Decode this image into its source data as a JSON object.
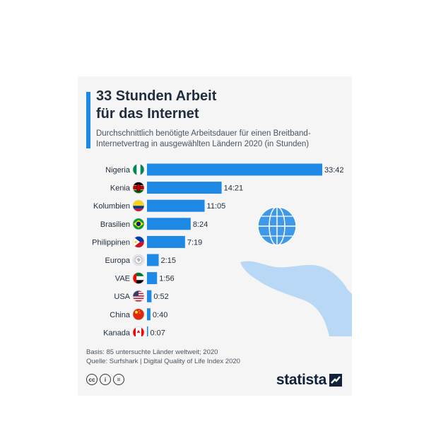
{
  "header": {
    "title_line1": "33 Stunden Arbeit",
    "title_line2": "für das Internet",
    "subtitle_line1": "Durchschnittlich benötigte Arbeitsdauer für einen Breitband-",
    "subtitle_line2": "Internetvertrag in ausgewählten Ländern 2020 (in Stunden)"
  },
  "chart_data": {
    "type": "bar",
    "orientation": "horizontal",
    "categories": [
      "Nigeria",
      "Kenia",
      "Kolumbien",
      "Brasilien",
      "Philippinen",
      "Europa",
      "VAE",
      "USA",
      "China",
      "Kanada"
    ],
    "labels": [
      "33:42",
      "14:21",
      "11:05",
      "8:24",
      "7:19",
      "2:15",
      "1:56",
      "0:52",
      "0:40",
      "0:07"
    ],
    "values": [
      33.7,
      14.35,
      11.083,
      8.4,
      7.317,
      2.25,
      1.933,
      0.867,
      0.667,
      0.117
    ],
    "unit": "Stunden",
    "bar_color": "#1e88e5",
    "icons": [
      "flag-nigeria-icon",
      "flag-kenya-icon",
      "flag-colombia-icon",
      "flag-brazil-icon",
      "flag-philippines-icon",
      "europe-globe-icon",
      "flag-uae-icon",
      "flag-usa-icon",
      "flag-china-icon",
      "flag-canada-icon"
    ]
  },
  "footer": {
    "basis": "Basis: 85 untersuchte Länder weltweit; 2020",
    "source": "Quelle: Surfshark | Digital Quality of Life Index 2020"
  },
  "license_icons": [
    "cc-icon",
    "attribution-icon",
    "no-derivatives-icon"
  ],
  "license_glyphs": [
    "cc",
    "i",
    "="
  ],
  "brand": {
    "name": "statista"
  },
  "colors": {
    "accent": "#1e88e5",
    "background": "#f5f5f5",
    "illustration": "#b9d8f5",
    "brand_dark": "#12223a"
  }
}
